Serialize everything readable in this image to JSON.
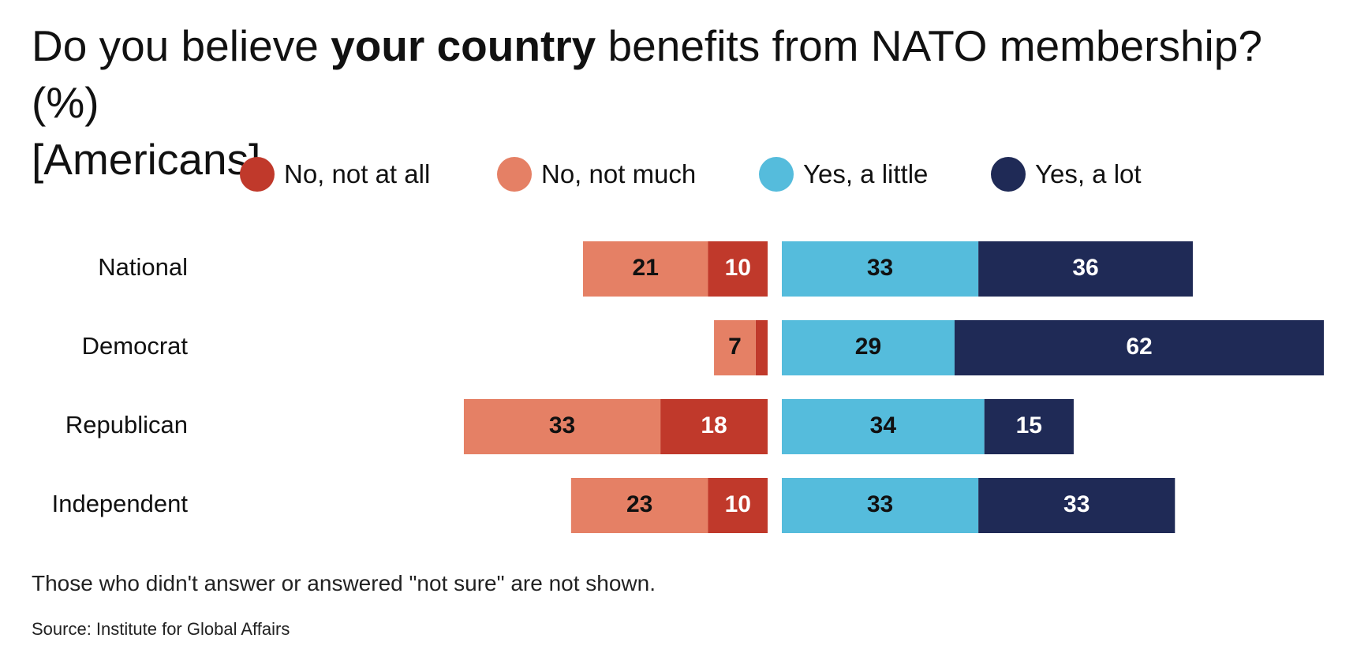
{
  "title": {
    "part1": "Do you believe ",
    "bold": "your country",
    "part2": " benefits from NATO membership? (%)",
    "line2": "[Americans]"
  },
  "note": "Those who didn't answer or answered \"not sure\" are not shown.",
  "source": "Source: Institute for Global Affairs",
  "chart_data": {
    "type": "bar",
    "orientation": "horizontal",
    "stacked": "diverging",
    "categories": [
      "National",
      "Democrat",
      "Republican",
      "Independent"
    ],
    "series": [
      {
        "name": "No, not at all",
        "color": "#c0392b",
        "label_color": "#ffffff",
        "side": "negative",
        "values": [
          10,
          2,
          18,
          10
        ]
      },
      {
        "name": "No, not much",
        "color": "#e58065",
        "label_color": "#111111",
        "side": "negative",
        "values": [
          21,
          7,
          33,
          23
        ]
      },
      {
        "name": "Yes, a little",
        "color": "#55bcdc",
        "label_color": "#111111",
        "side": "positive",
        "values": [
          33,
          29,
          34,
          33
        ]
      },
      {
        "name": "Yes, a lot",
        "color": "#1f2a56",
        "label_color": "#ffffff",
        "side": "positive",
        "values": [
          36,
          62,
          15,
          33
        ]
      }
    ],
    "legend": "top",
    "grid": false
  }
}
